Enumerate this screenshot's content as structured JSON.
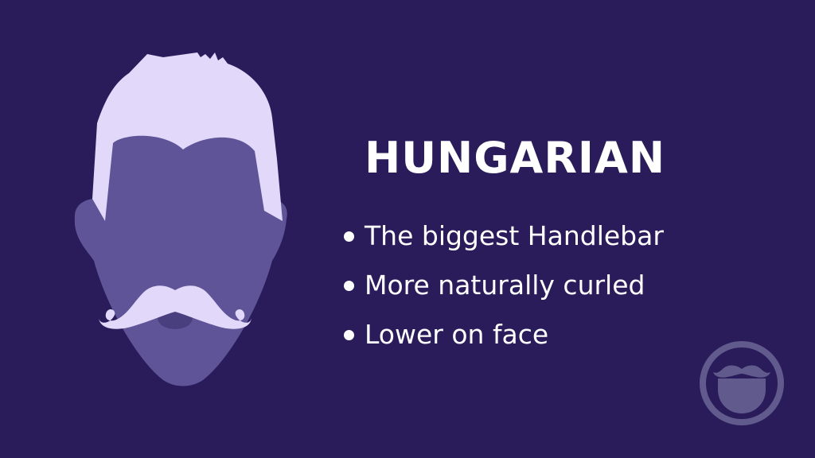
{
  "slide": {
    "title": "HUNGARIAN",
    "bullets": [
      "The biggest Handlebar",
      "More naturally curled",
      "Lower on face"
    ]
  },
  "illustration": {
    "icon": "face-with-handlebar-mustache-icon",
    "skin_color": "#5f5497",
    "hair_color": "#e2d8fa"
  },
  "logo": {
    "icon": "beard-mustache-logo-icon",
    "color": "#615a8c"
  },
  "colors": {
    "background": "#2a1c5a",
    "text": "#ffffff"
  }
}
